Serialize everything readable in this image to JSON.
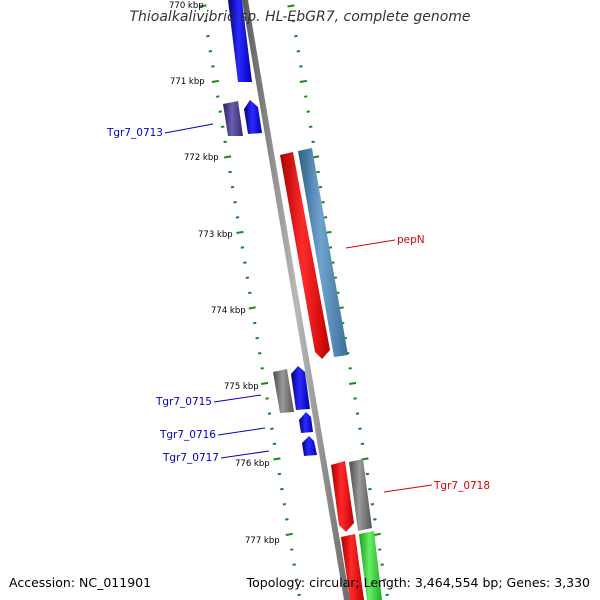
{
  "title": "Thioalkalivibrio sp. HL-EbGR7, complete genome",
  "footer": {
    "accession": "Accession: NC_011901",
    "summary": "Topology: circular; Length: 3,464,554 bp; Genes: 3,330"
  },
  "ruler": {
    "ticks": [
      {
        "label": "770 kbp"
      },
      {
        "label": "771 kbp"
      },
      {
        "label": "772 kbp"
      },
      {
        "label": "773 kbp"
      },
      {
        "label": "774 kbp"
      },
      {
        "label": "775 kbp"
      },
      {
        "label": "776 kbp"
      },
      {
        "label": "777 kbp"
      }
    ]
  },
  "gene_labels": [
    {
      "text": "Tgr7_0713",
      "color": "#0000cc"
    },
    {
      "text": "pepN",
      "color": "#dd0000"
    },
    {
      "text": "Tgr7_0715",
      "color": "#0000cc"
    },
    {
      "text": "Tgr7_0716",
      "color": "#0000cc"
    },
    {
      "text": "Tgr7_0717",
      "color": "#0000cc"
    },
    {
      "text": "Tgr7_0718",
      "color": "#dd0000"
    }
  ],
  "colors": {
    "backbone": "#8c8c8c",
    "tick_dashes": "#1a8a1a",
    "forward_cds": "#0000ff",
    "reverse_cds": "#ff0000",
    "steelblue_feature": "#4682b4",
    "gray_feature": "#6e6e6e",
    "purple_feature": "#4b3f8c",
    "green_feature": "#33cc33"
  }
}
